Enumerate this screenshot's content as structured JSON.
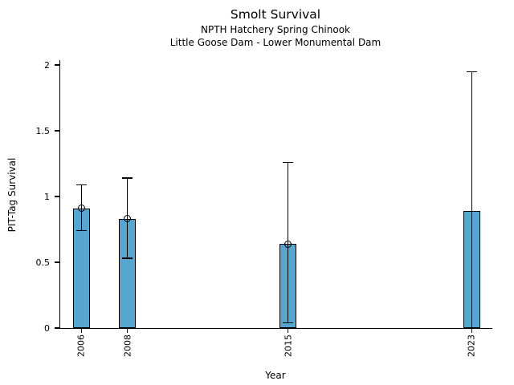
{
  "figure": {
    "title": "Smolt Survival",
    "subtitle1": "NPTH Hatchery Spring Chinook",
    "subtitle2": "Little Goose Dam - Lower Monumental Dam"
  },
  "chart_data": {
    "type": "bar",
    "title": "Smolt Survival",
    "subtitles": [
      "NPTH Hatchery Spring Chinook",
      "Little Goose Dam - Lower Monumental Dam"
    ],
    "xlabel": "Year",
    "ylabel": "PIT-Tag Survival",
    "x": [
      2006,
      2008,
      2015,
      2023
    ],
    "x_tick_labels": [
      "2006",
      "2008",
      "2015",
      "2023"
    ],
    "values": [
      0.91,
      0.83,
      0.64,
      0.89
    ],
    "error_low": [
      0.74,
      0.53,
      0.04,
      0.0
    ],
    "error_high": [
      1.09,
      1.14,
      1.26,
      1.95
    ],
    "point_marker": [
      true,
      true,
      true,
      false
    ],
    "y_ticks": [
      0,
      0.5,
      1,
      1.5,
      2
    ],
    "y_tick_labels": [
      "0",
      "0.5",
      "1",
      "1.5",
      "2"
    ],
    "x_range": [
      2005.04,
      2023.86
    ],
    "y_range": [
      0,
      2.037
    ],
    "bar_width_years": 0.74,
    "bar_color": "#57A6D0",
    "bar_edge_color": "#000000",
    "error_color": "#000000",
    "grid": false,
    "legend": null
  }
}
